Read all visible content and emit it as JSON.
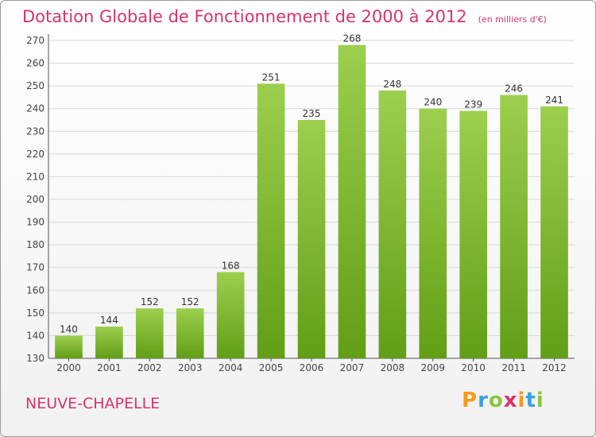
{
  "title": "Dotation Globale de Fonctionnement de 2000 à 2012",
  "unit_note": "(en milliers d'€)",
  "commune": "NEUVE-CHAPELLE",
  "logo": {
    "text": "Proxiti",
    "colors": [
      "#f39a1c",
      "#3aa0de",
      "#d6336c",
      "#8cc43c"
    ]
  },
  "colors": {
    "title": "#d6336c",
    "bar_top": "#9ccf4e",
    "bar_bottom": "#629e16",
    "axis": "#444444",
    "grid": "#d8d8d8"
  },
  "chart_data": {
    "type": "bar",
    "title": "Dotation Globale de Fonctionnement de 2000 à 2012",
    "xlabel": "",
    "ylabel": "",
    "categories": [
      "2000",
      "2001",
      "2002",
      "2003",
      "2004",
      "2005",
      "2006",
      "2007",
      "2008",
      "2009",
      "2010",
      "2011",
      "2012"
    ],
    "values": [
      140,
      144,
      152,
      152,
      168,
      251,
      235,
      268,
      248,
      240,
      239,
      246,
      241
    ],
    "ylim": [
      130,
      270
    ],
    "yticks": [
      130,
      140,
      150,
      160,
      170,
      180,
      190,
      200,
      210,
      220,
      230,
      240,
      250,
      260,
      270
    ],
    "grid": true,
    "legend": "none"
  }
}
